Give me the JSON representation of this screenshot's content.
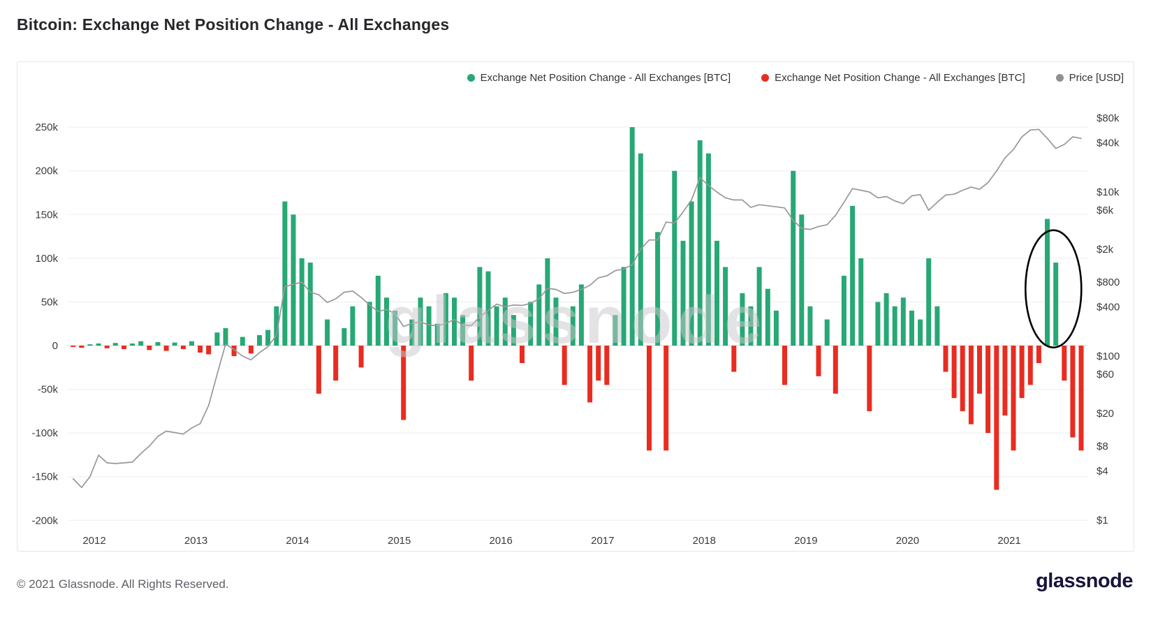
{
  "page": {
    "title": "Bitcoin: Exchange Net Position Change - All Exchanges",
    "footer_copyright": "© 2021 Glassnode. All Rights Reserved.",
    "footer_logo": "glassnode",
    "watermark": "glassnode"
  },
  "legend": {
    "items": [
      {
        "label": "Exchange Net Position Change - All Exchanges [BTC]",
        "color": "#27a874"
      },
      {
        "label": "Exchange Net Position Change - All Exchanges [BTC]",
        "color": "#e82c21"
      },
      {
        "label": "Price [USD]",
        "color": "#8f8f94"
      }
    ]
  },
  "chart_data": {
    "type": "bar",
    "title": "Bitcoin: Exchange Net Position Change - All Exchanges",
    "description": "Green/red bars: monthly exchange net position change in BTC (left linear axis). Gray line: BTC price in USD (right logarithmic axis).",
    "colors": {
      "positive_bar": "#27a874",
      "negative_bar": "#e82c21",
      "price_line": "#97979c",
      "grid": "#ededf1",
      "zero_line": "#dadade",
      "axis_text": "#3c3c42",
      "watermark": "#c9c9cd",
      "annotation": "#000000"
    },
    "left_axis": {
      "unit": "BTC",
      "ticks": [
        250000,
        200000,
        150000,
        100000,
        50000,
        0,
        -50000,
        -100000,
        -150000,
        -200000
      ],
      "labels": [
        "250k",
        "200k",
        "150k",
        "100k",
        "50k",
        "0",
        "-50k",
        "-100k",
        "-150k",
        "-200k"
      ]
    },
    "right_axis": {
      "unit": "USD",
      "scale": "log",
      "ticks": [
        80000,
        40000,
        10000,
        6000,
        2000,
        800,
        400,
        100,
        60,
        20,
        8,
        4,
        1
      ],
      "labels": [
        "$80k",
        "$40k",
        "$10k",
        "$6k",
        "$2k",
        "$800",
        "$400",
        "$100",
        "$60",
        "$20",
        "$8",
        "$4",
        "$1"
      ]
    },
    "x_ticks": [
      2012,
      2013,
      2014,
      2015,
      2016,
      2017,
      2018,
      2019,
      2020,
      2021
    ],
    "points_format": [
      "month",
      "net_position_change_btc",
      "price_usd"
    ],
    "points": [
      [
        "2011-10",
        -1500,
        3.2
      ],
      [
        "2011-11",
        -2500,
        2.5
      ],
      [
        "2011-12",
        1500,
        3.4
      ],
      [
        "2012-01",
        2500,
        6.2
      ],
      [
        "2012-02",
        -3000,
        5.0
      ],
      [
        "2012-03",
        3000,
        4.9
      ],
      [
        "2012-04",
        -4000,
        5.0
      ],
      [
        "2012-05",
        2500,
        5.1
      ],
      [
        "2012-06",
        5000,
        6.5
      ],
      [
        "2012-07",
        -5000,
        8.0
      ],
      [
        "2012-08",
        4000,
        10.5
      ],
      [
        "2012-09",
        -6000,
        12.2
      ],
      [
        "2012-10",
        3500,
        11.7
      ],
      [
        "2012-11",
        -4000,
        11.2
      ],
      [
        "2012-12",
        5000,
        13.3
      ],
      [
        "2013-01",
        -8000,
        15
      ],
      [
        "2013-02",
        -10000,
        25
      ],
      [
        "2013-03",
        15000,
        60
      ],
      [
        "2013-04",
        20000,
        140
      ],
      [
        "2013-05",
        -12000,
        120
      ],
      [
        "2013-06",
        10000,
        100
      ],
      [
        "2013-07",
        -9000,
        90
      ],
      [
        "2013-08",
        12000,
        110
      ],
      [
        "2013-09",
        18000,
        130
      ],
      [
        "2013-10",
        45000,
        180
      ],
      [
        "2013-11",
        165000,
        700
      ],
      [
        "2013-12",
        150000,
        750
      ],
      [
        "2014-01",
        100000,
        800
      ],
      [
        "2014-02",
        95000,
        600
      ],
      [
        "2014-03",
        -55000,
        560
      ],
      [
        "2014-04",
        30000,
        450
      ],
      [
        "2014-05",
        -40000,
        500
      ],
      [
        "2014-06",
        20000,
        600
      ],
      [
        "2014-07",
        45000,
        620
      ],
      [
        "2014-08",
        -25000,
        520
      ],
      [
        "2014-09",
        50000,
        420
      ],
      [
        "2014-10",
        80000,
        350
      ],
      [
        "2014-11",
        55000,
        370
      ],
      [
        "2014-12",
        40000,
        330
      ],
      [
        "2015-01",
        -85000,
        230
      ],
      [
        "2015-02",
        30000,
        250
      ],
      [
        "2015-03",
        55000,
        260
      ],
      [
        "2015-04",
        45000,
        240
      ],
      [
        "2015-05",
        25000,
        235
      ],
      [
        "2015-06",
        60000,
        250
      ],
      [
        "2015-07",
        55000,
        280
      ],
      [
        "2015-08",
        35000,
        240
      ],
      [
        "2015-09",
        -40000,
        235
      ],
      [
        "2015-10",
        90000,
        300
      ],
      [
        "2015-11",
        85000,
        360
      ],
      [
        "2015-12",
        45000,
        430
      ],
      [
        "2016-01",
        55000,
        400
      ],
      [
        "2016-02",
        35000,
        420
      ],
      [
        "2016-03",
        -20000,
        415
      ],
      [
        "2016-04",
        50000,
        440
      ],
      [
        "2016-05",
        70000,
        500
      ],
      [
        "2016-06",
        100000,
        670
      ],
      [
        "2016-07",
        55000,
        650
      ],
      [
        "2016-08",
        -45000,
        580
      ],
      [
        "2016-09",
        45000,
        600
      ],
      [
        "2016-10",
        70000,
        650
      ],
      [
        "2016-11",
        -65000,
        730
      ],
      [
        "2016-12",
        -40000,
        900
      ],
      [
        "2017-01",
        -45000,
        950
      ],
      [
        "2017-02",
        35000,
        1100
      ],
      [
        "2017-03",
        90000,
        1150
      ],
      [
        "2017-04",
        250000,
        1300
      ],
      [
        "2017-05",
        220000,
        2000
      ],
      [
        "2017-06",
        -120000,
        2600
      ],
      [
        "2017-07",
        130000,
        2600
      ],
      [
        "2017-08",
        -120000,
        4300
      ],
      [
        "2017-09",
        200000,
        4200
      ],
      [
        "2017-10",
        120000,
        5700
      ],
      [
        "2017-11",
        165000,
        8000
      ],
      [
        "2017-12",
        235000,
        15000
      ],
      [
        "2018-01",
        220000,
        12000
      ],
      [
        "2018-02",
        120000,
        10000
      ],
      [
        "2018-03",
        90000,
        8500
      ],
      [
        "2018-04",
        -30000,
        8000
      ],
      [
        "2018-05",
        60000,
        8000
      ],
      [
        "2018-06",
        45000,
        6500
      ],
      [
        "2018-07",
        90000,
        7000
      ],
      [
        "2018-08",
        65000,
        6800
      ],
      [
        "2018-09",
        40000,
        6600
      ],
      [
        "2018-10",
        -45000,
        6400
      ],
      [
        "2018-11",
        200000,
        4500
      ],
      [
        "2018-12",
        150000,
        3600
      ],
      [
        "2019-01",
        45000,
        3500
      ],
      [
        "2019-02",
        -35000,
        3800
      ],
      [
        "2019-03",
        30000,
        4000
      ],
      [
        "2019-04",
        -55000,
        5200
      ],
      [
        "2019-05",
        80000,
        7500
      ],
      [
        "2019-06",
        160000,
        11000
      ],
      [
        "2019-07",
        100000,
        10500
      ],
      [
        "2019-08",
        -75000,
        10000
      ],
      [
        "2019-09",
        50000,
        8500
      ],
      [
        "2019-10",
        60000,
        8800
      ],
      [
        "2019-11",
        45000,
        7800
      ],
      [
        "2019-12",
        55000,
        7200
      ],
      [
        "2020-01",
        40000,
        9000
      ],
      [
        "2020-02",
        30000,
        9300
      ],
      [
        "2020-03",
        100000,
        6000
      ],
      [
        "2020-04",
        45000,
        7500
      ],
      [
        "2020-05",
        -30000,
        9200
      ],
      [
        "2020-06",
        -60000,
        9400
      ],
      [
        "2020-07",
        -75000,
        10500
      ],
      [
        "2020-08",
        -90000,
        11500
      ],
      [
        "2020-09",
        -55000,
        10800
      ],
      [
        "2020-10",
        -100000,
        13000
      ],
      [
        "2020-11",
        -165000,
        18000
      ],
      [
        "2020-12",
        -80000,
        26000
      ],
      [
        "2021-01",
        -120000,
        33000
      ],
      [
        "2021-02",
        -60000,
        47000
      ],
      [
        "2021-03",
        -45000,
        57000
      ],
      [
        "2021-04",
        -20000,
        58000
      ],
      [
        "2021-05",
        145000,
        45000
      ],
      [
        "2021-06",
        95000,
        34000
      ],
      [
        "2021-07",
        -40000,
        38000
      ],
      [
        "2021-08",
        -105000,
        47000
      ],
      [
        "2021-09",
        -120000,
        45000
      ]
    ],
    "annotation": {
      "shape": "ellipse",
      "month": "2021-05",
      "center_value": 65000,
      "note": "hand-drawn black ellipse circling the mid-2021 green inflow spike"
    }
  }
}
